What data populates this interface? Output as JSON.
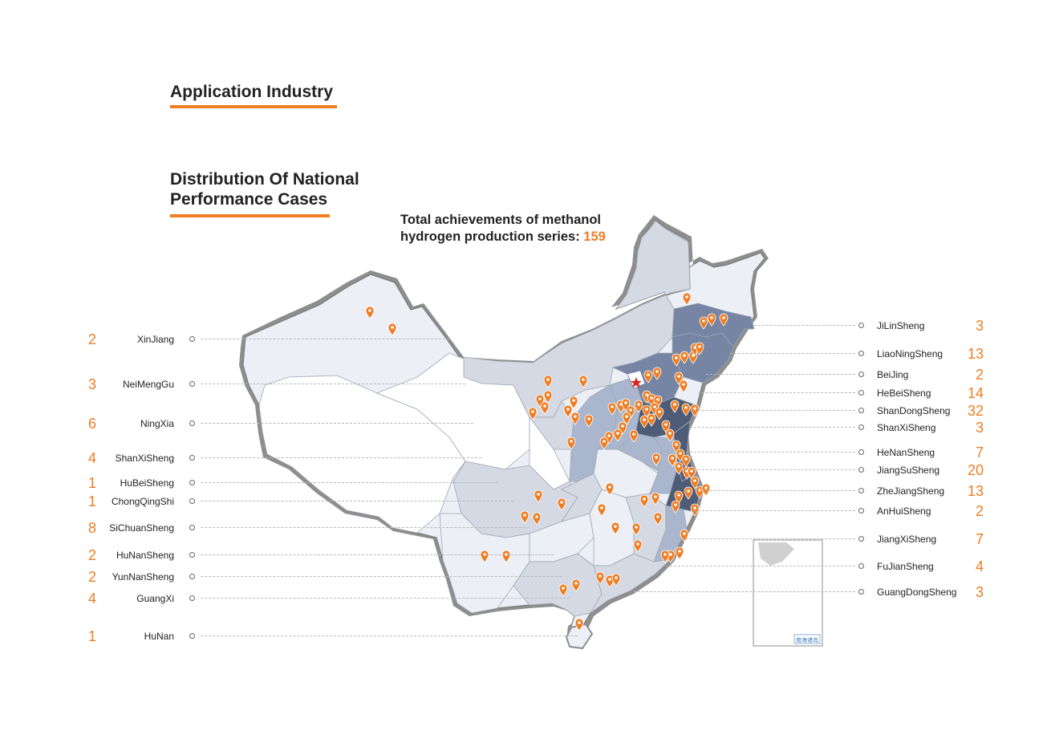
{
  "headings": {
    "industry": "Application Industry",
    "distribution_line1": "Distribution Of National",
    "distribution_line2": "Performance Cases"
  },
  "total": {
    "line1": "Total achievements of methanol",
    "line2": "hydrogen production series:",
    "value": "159"
  },
  "left_regions": [
    {
      "name": "XinJiang",
      "count": "2"
    },
    {
      "name": "NeiMengGu",
      "count": "3"
    },
    {
      "name": "NingXia",
      "count": "6"
    },
    {
      "name": "ShanXiSheng",
      "count": "4"
    },
    {
      "name": "HuBeiSheng",
      "count": "1"
    },
    {
      "name": "ChongQingShi",
      "count": "1"
    },
    {
      "name": "SiChuanSheng",
      "count": "8"
    },
    {
      "name": "HuNanSheng",
      "count": "2"
    },
    {
      "name": "YunNanSheng",
      "count": "2"
    },
    {
      "name": "GuangXi",
      "count": "4"
    },
    {
      "name": "HuNan",
      "count": "1"
    }
  ],
  "right_regions": [
    {
      "name": "JiLinSheng",
      "count": "3"
    },
    {
      "name": "LiaoNingSheng",
      "count": "13"
    },
    {
      "name": "BeiJing",
      "count": "2"
    },
    {
      "name": "HeBeiSheng",
      "count": "14"
    },
    {
      "name": "ShanDongSheng",
      "count": "32"
    },
    {
      "name": "ShanXiSheng",
      "count": "3"
    },
    {
      "name": "HeNanSheng",
      "count": "7"
    },
    {
      "name": "JiangSuSheng",
      "count": "20"
    },
    {
      "name": "ZheJiangSheng",
      "count": "13"
    },
    {
      "name": "AnHuiSheng",
      "count": "2"
    },
    {
      "name": "JiangXiSheng",
      "count": "7"
    },
    {
      "name": "FuJianSheng",
      "count": "4"
    },
    {
      "name": "GuangDongSheng",
      "count": "3"
    }
  ],
  "inset_label": "南海诸岛",
  "colors": {
    "accent": "#ef7d22",
    "region_lightest": "#eceff6",
    "region_light": "#d5d9e3",
    "region_mid": "#a9b6cd",
    "region_dark": "#7585a3",
    "region_darkest": "#4f5c77",
    "border": "#7a7a7a",
    "capital_star": "#e02020"
  },
  "icons": [
    "map-pin-icon",
    "capital-star-icon"
  ]
}
